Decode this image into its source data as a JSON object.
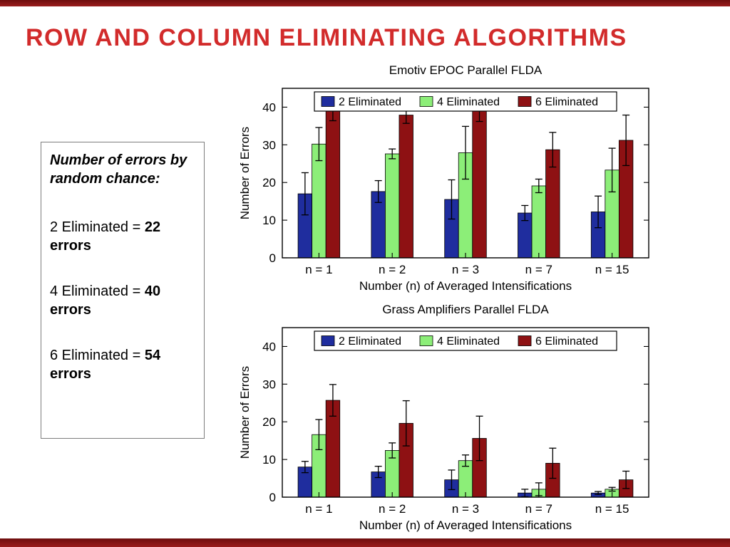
{
  "slide": {
    "title": "ROW AND COLUMN ELIMINATING ALGORITHMS"
  },
  "colors": {
    "accent_red": "#d22b2b",
    "strip_red": "#8a1414",
    "series_blue": "#1f2d9e",
    "series_green": "#8cee78",
    "series_dark_red": "#8e1113"
  },
  "info_box": {
    "heading": "Number of errors by random chance:",
    "items": [
      {
        "prefix": "2 Eliminated = ",
        "value": "22 errors"
      },
      {
        "prefix": "4 Eliminated = ",
        "value": "40 errors"
      },
      {
        "prefix": "6 Eliminated = ",
        "value": "54 errors"
      }
    ]
  },
  "chart_data": [
    {
      "type": "bar",
      "title": "Emotiv EPOC Parallel FLDA",
      "xlabel": "Number (n) of Averaged Intensifications",
      "ylabel": "Number of Errors",
      "ylim": [
        0,
        45
      ],
      "yticks": [
        0,
        10,
        20,
        30,
        40
      ],
      "categories": [
        "n = 1",
        "n = 2",
        "n = 3",
        "n = 7",
        "n = 15"
      ],
      "grid": false,
      "legend_position": "top-inside",
      "series": [
        {
          "name": "2 Eliminated",
          "color": "#1f2d9e",
          "values": [
            17.0,
            17.6,
            15.5,
            11.9,
            12.2
          ],
          "errors": [
            5.6,
            2.9,
            5.2,
            2.0,
            4.2
          ]
        },
        {
          "name": "4 Eliminated",
          "color": "#8cee78",
          "values": [
            30.2,
            27.6,
            27.9,
            19.1,
            23.3
          ],
          "errors": [
            4.4,
            1.3,
            7.0,
            1.8,
            5.8
          ]
        },
        {
          "name": "6 Eliminated",
          "color": "#8e1113",
          "values": [
            39.4,
            37.9,
            39.2,
            28.7,
            31.2
          ],
          "errors": [
            3.0,
            2.2,
            3.0,
            4.6,
            6.7
          ]
        }
      ]
    },
    {
      "type": "bar",
      "title": "Grass Amplifiers Parallel FLDA",
      "xlabel": "Number (n) of Averaged Intensifications",
      "ylabel": "Number of Errors",
      "ylim": [
        0,
        45
      ],
      "yticks": [
        0,
        10,
        20,
        30,
        40
      ],
      "categories": [
        "n = 1",
        "n = 2",
        "n = 3",
        "n = 7",
        "n = 15"
      ],
      "grid": false,
      "legend_position": "top-inside",
      "series": [
        {
          "name": "2 Eliminated",
          "color": "#1f2d9e",
          "values": [
            8.0,
            6.7,
            4.6,
            1.1,
            1.1
          ],
          "errors": [
            1.5,
            1.5,
            2.6,
            1.0,
            0.4
          ]
        },
        {
          "name": "4 Eliminated",
          "color": "#8cee78",
          "values": [
            16.6,
            12.4,
            9.7,
            2.1,
            2.1
          ],
          "errors": [
            4.0,
            2.0,
            1.5,
            1.7,
            0.5
          ]
        },
        {
          "name": "6 Eliminated",
          "color": "#8e1113",
          "values": [
            25.7,
            19.6,
            15.6,
            9.0,
            4.6
          ],
          "errors": [
            4.2,
            6.0,
            5.9,
            4.0,
            2.3
          ]
        }
      ]
    }
  ]
}
